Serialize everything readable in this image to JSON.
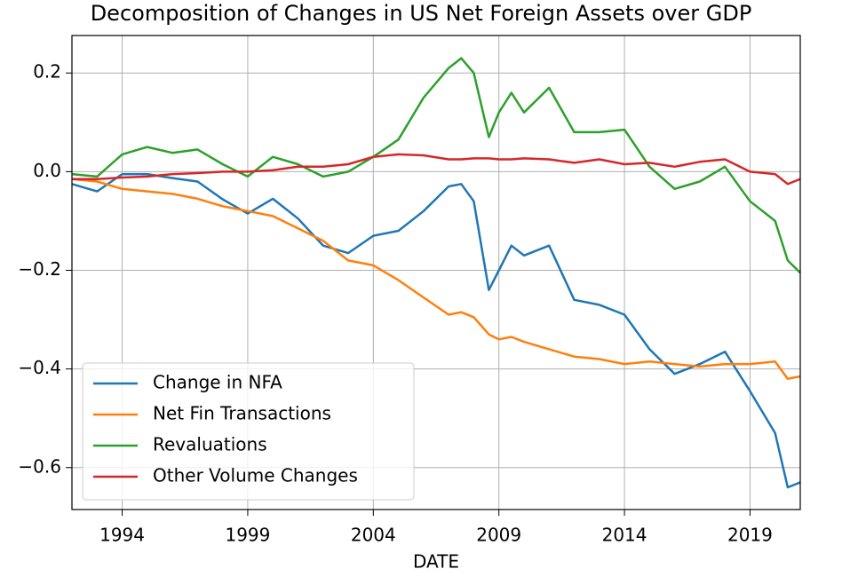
{
  "chart_data": {
    "type": "line",
    "title": "Decomposition of Changes in US Net Foreign Assets over GDP",
    "xlabel": "DATE",
    "x": [
      1992,
      1993,
      1994,
      1995,
      1996,
      1997,
      1998,
      1999,
      2000,
      2001,
      2002,
      2003,
      2004,
      2005,
      2006,
      2007,
      2007.5,
      2008,
      2008.6,
      2009,
      2009.5,
      2010,
      2011,
      2012,
      2013,
      2014,
      2015,
      2016,
      2017,
      2018,
      2019,
      2020,
      2020.5,
      2021
    ],
    "series": [
      {
        "name": "Change in NFA",
        "color": "#1f77b4",
        "values": [
          -0.025,
          -0.04,
          -0.005,
          -0.005,
          -0.013,
          -0.02,
          -0.056,
          -0.085,
          -0.055,
          -0.095,
          -0.15,
          -0.165,
          -0.13,
          -0.12,
          -0.08,
          -0.03,
          -0.025,
          -0.06,
          -0.24,
          -0.2,
          -0.15,
          -0.17,
          -0.15,
          -0.26,
          -0.27,
          -0.29,
          -0.36,
          -0.41,
          -0.39,
          -0.365,
          -0.445,
          -0.53,
          -0.64,
          -0.63
        ]
      },
      {
        "name": "Net Fin Transactions",
        "color": "#ff7f0e",
        "values": [
          -0.015,
          -0.02,
          -0.035,
          -0.04,
          -0.045,
          -0.055,
          -0.07,
          -0.08,
          -0.09,
          -0.115,
          -0.14,
          -0.18,
          -0.19,
          -0.22,
          -0.255,
          -0.29,
          -0.285,
          -0.295,
          -0.33,
          -0.34,
          -0.335,
          -0.345,
          -0.36,
          -0.375,
          -0.38,
          -0.39,
          -0.385,
          -0.39,
          -0.395,
          -0.39,
          -0.39,
          -0.385,
          -0.42,
          -0.415
        ]
      },
      {
        "name": "Revaluations",
        "color": "#2ca02c",
        "values": [
          -0.005,
          -0.01,
          0.035,
          0.05,
          0.038,
          0.045,
          0.015,
          -0.01,
          0.03,
          0.015,
          -0.01,
          0.0,
          0.03,
          0.065,
          0.15,
          0.21,
          0.23,
          0.2,
          0.07,
          0.12,
          0.16,
          0.12,
          0.17,
          0.08,
          0.08,
          0.085,
          0.01,
          -0.035,
          -0.02,
          0.01,
          -0.06,
          -0.1,
          -0.18,
          -0.205
        ]
      },
      {
        "name": "Other Volume Changes",
        "color": "#d62728",
        "values": [
          -0.015,
          -0.015,
          -0.012,
          -0.01,
          -0.005,
          -0.003,
          0.0,
          0.0,
          0.003,
          0.01,
          0.01,
          0.015,
          0.03,
          0.035,
          0.033,
          0.025,
          0.025,
          0.027,
          0.027,
          0.025,
          0.025,
          0.027,
          0.025,
          0.018,
          0.025,
          0.015,
          0.018,
          0.01,
          0.02,
          0.025,
          0.0,
          -0.005,
          -0.025,
          -0.015
        ]
      }
    ],
    "xlim": [
      1992,
      2021
    ],
    "ylim": [
      -0.685,
      0.276
    ],
    "xticks": [
      1994,
      1999,
      2004,
      2009,
      2014,
      2019
    ],
    "yticks": [
      0.2,
      {
        "value": 0,
        "label": "0.0"
      },
      {
        "value": -0.2,
        "label": "−0.2"
      },
      {
        "value": -0.4,
        "label": "−0.4"
      },
      {
        "value": -0.6,
        "label": "−0.6"
      }
    ],
    "grid": true,
    "legend": "lower left"
  }
}
